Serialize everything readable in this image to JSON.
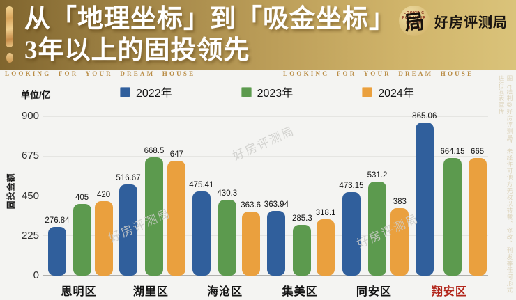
{
  "header": {
    "title_line1": "从「地理坐标」到「吸金坐标」",
    "title_line2": "3年以上的固投领先",
    "brand": {
      "logo_char": "局",
      "ring_rows": [
        "LOOKING",
        "FOR YOUR",
        "DREAM",
        "HOME"
      ],
      "name": "好房评测局"
    }
  },
  "subheader": {
    "tagline_left": "LOOKING FOR YOUR DREAM HOUSE",
    "tagline_right": "LOOKING FOR YOUR DREAM HOUSE"
  },
  "chart_data": {
    "type": "bar",
    "unit_label": "单位/亿",
    "ylabel": "固投金额",
    "ylim": [
      0,
      900
    ],
    "yticks": [
      0,
      225,
      450,
      675,
      900
    ],
    "grid": true,
    "legend_position": "top",
    "categories": [
      "思明区",
      "湖里区",
      "海沧区",
      "集美区",
      "同安区",
      "翔安区"
    ],
    "highlight_category": "翔安区",
    "highlight_color": "#b2261b",
    "series": [
      {
        "name": "2022年",
        "color": "#305f9c",
        "values": [
          276.84,
          516.67,
          475.41,
          363.94,
          473.15,
          865.06
        ]
      },
      {
        "name": "2023年",
        "color": "#5c9a4e",
        "values": [
          405,
          668.5,
          430.3,
          285.3,
          531.2,
          664.15
        ]
      },
      {
        "name": "2024年",
        "color": "#eaa03e",
        "values": [
          420,
          647,
          363.6,
          318.1,
          383,
          665
        ]
      }
    ]
  },
  "watermarks": {
    "diagonal": [
      "好房评测局",
      "好房评测局",
      "好房评测局"
    ],
    "vertical_note": "图片绘制@好房评测局，未经许可他方无权以转载、修改、刊发等任何形式进行发表宣传"
  }
}
